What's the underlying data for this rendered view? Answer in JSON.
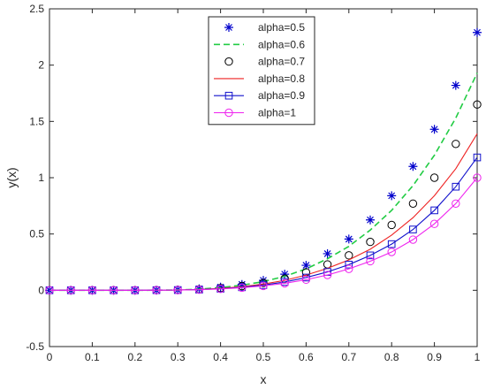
{
  "chart_data": {
    "type": "line",
    "xlabel": "x",
    "ylabel": "y(x)",
    "xlim": [
      0,
      1
    ],
    "ylim": [
      -0.5,
      2.5
    ],
    "x_ticks": [
      "0",
      "0.1",
      "0.2",
      "0.3",
      "0.4",
      "0.5",
      "0.6",
      "0.7",
      "0.8",
      "0.9",
      "1"
    ],
    "y_ticks": [
      "-0.5",
      "0",
      "0.5",
      "1",
      "1.5",
      "2",
      "2.5"
    ],
    "grid": false,
    "legend_position": "top-center",
    "x": [
      0,
      0.05,
      0.1,
      0.15,
      0.2,
      0.25,
      0.3,
      0.35,
      0.4,
      0.45,
      0.5,
      0.55,
      0.6,
      0.65,
      0.7,
      0.75,
      0.8,
      0.85,
      0.9,
      0.95,
      1.0
    ],
    "series": [
      {
        "name": "alpha=0.5",
        "style": "asterisk",
        "color": "#0000cc",
        "values": [
          0,
          0,
          0,
          0,
          0,
          0.001,
          0.004,
          0.012,
          0.028,
          0.052,
          0.088,
          0.143,
          0.222,
          0.325,
          0.455,
          0.625,
          0.84,
          1.1,
          1.43,
          1.82,
          2.29
        ]
      },
      {
        "name": "alpha=0.6",
        "style": "dashed",
        "color": "#22cc44",
        "values": [
          0,
          0,
          0,
          0,
          0,
          0.001,
          0.003,
          0.01,
          0.024,
          0.045,
          0.077,
          0.124,
          0.19,
          0.28,
          0.39,
          0.535,
          0.71,
          0.93,
          1.2,
          1.53,
          1.93
        ]
      },
      {
        "name": "alpha=0.7",
        "style": "circle",
        "color": "#000000",
        "values": [
          0,
          0,
          0,
          0,
          0,
          0.001,
          0.003,
          0.008,
          0.02,
          0.038,
          0.065,
          0.104,
          0.16,
          0.23,
          0.31,
          0.43,
          0.58,
          0.77,
          1.0,
          1.3,
          1.65
        ]
      },
      {
        "name": "alpha=0.8",
        "style": "solid",
        "color": "#ee2222",
        "values": [
          0,
          0,
          0,
          0,
          0,
          0.001,
          0.002,
          0.007,
          0.017,
          0.032,
          0.055,
          0.088,
          0.135,
          0.195,
          0.27,
          0.365,
          0.49,
          0.645,
          0.84,
          1.08,
          1.39
        ]
      },
      {
        "name": "alpha=0.9",
        "style": "square",
        "color": "#1111cc",
        "values": [
          0,
          0,
          0,
          0,
          0,
          0.001,
          0.002,
          0.006,
          0.014,
          0.027,
          0.046,
          0.074,
          0.113,
          0.163,
          0.228,
          0.31,
          0.41,
          0.54,
          0.71,
          0.92,
          1.18
        ]
      },
      {
        "name": "alpha=1",
        "style": "circle-line",
        "color": "#ee22ee",
        "values": [
          0,
          0,
          0,
          0,
          0,
          0.001,
          0.002,
          0.005,
          0.012,
          0.023,
          0.039,
          0.062,
          0.094,
          0.136,
          0.19,
          0.258,
          0.34,
          0.45,
          0.59,
          0.77,
          1.0
        ]
      }
    ]
  }
}
